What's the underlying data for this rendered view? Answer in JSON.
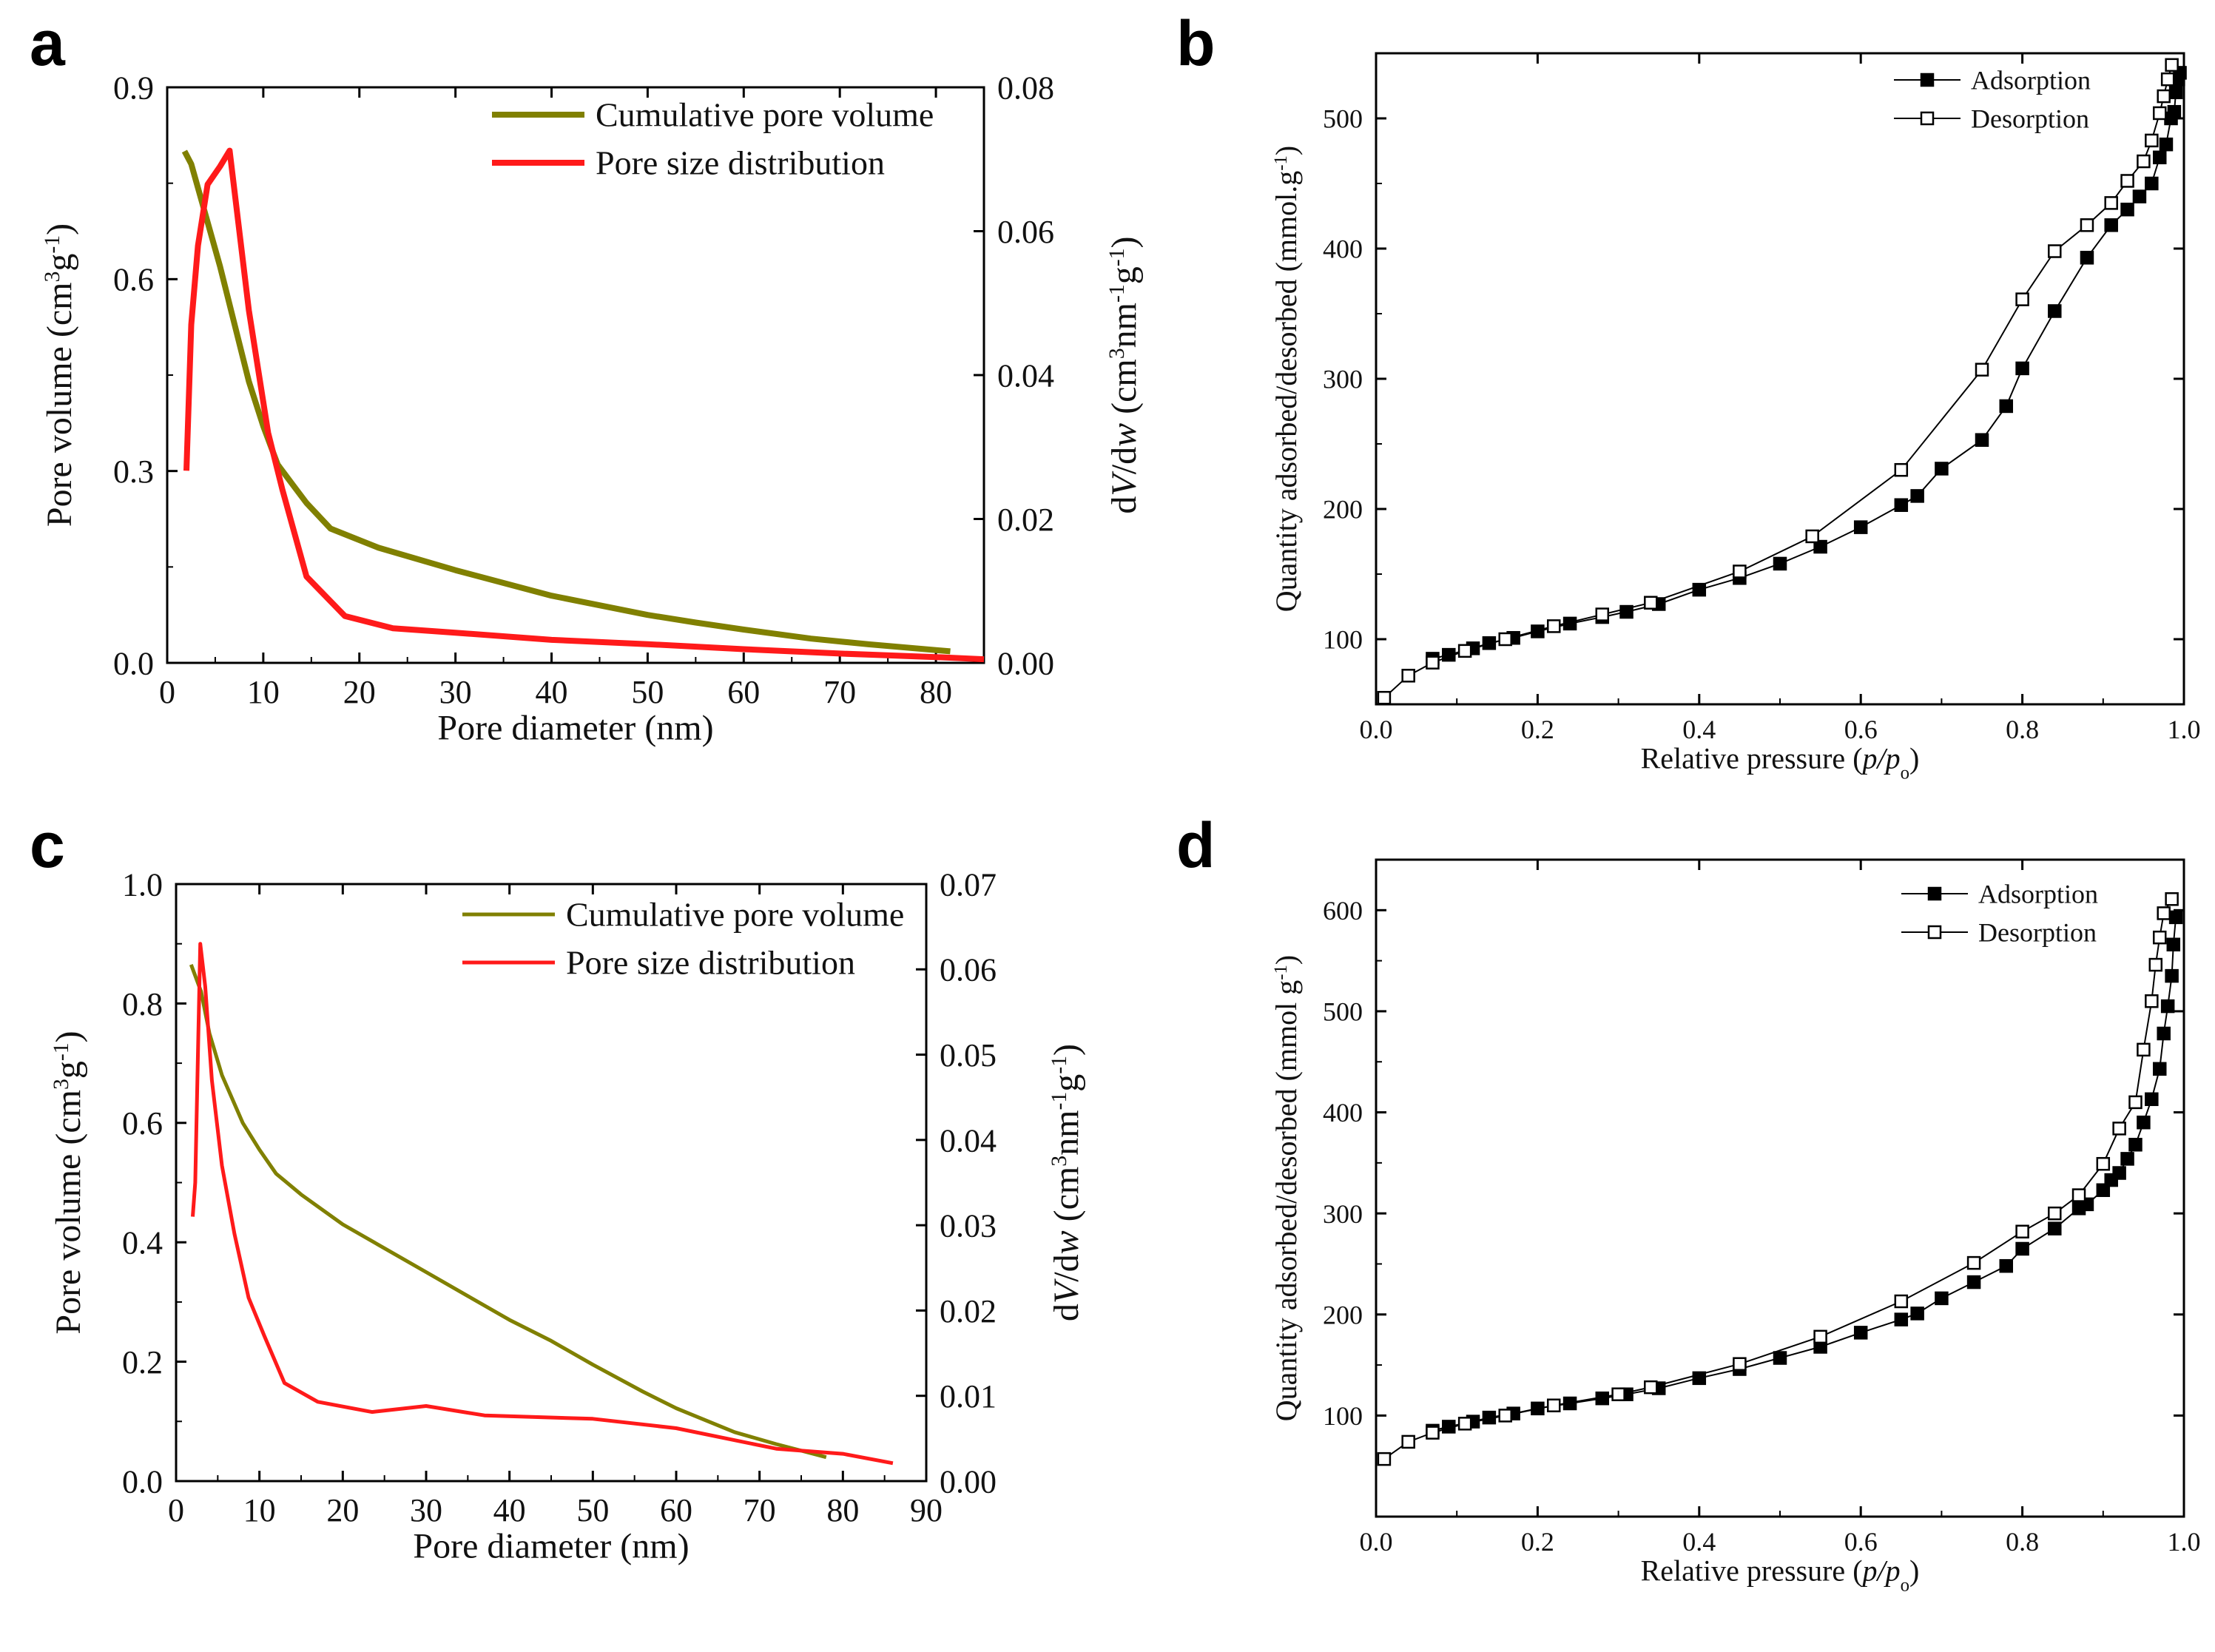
{
  "chart_data": [
    {
      "panel": "a",
      "type": "line",
      "xlabel": "Pore diameter (nm)",
      "ylabel": "Pore volume (cm3g-1)",
      "ylabel_parts": [
        "Pore volume ",
        "(cm",
        "3",
        "g",
        "-1",
        ")"
      ],
      "y2label": "dV/dw (cm3nm-1g-1)",
      "y2label_parts": [
        "d",
        "V",
        "/d",
        "w",
        " (cm",
        "3",
        "nm",
        "-1",
        "g",
        "-1",
        ")"
      ],
      "xlim": [
        0,
        85
      ],
      "ylim": [
        0,
        0.9
      ],
      "y2lim": [
        0,
        0.08
      ],
      "xticks": [
        "0",
        "10",
        "20",
        "30",
        "40",
        "50",
        "60",
        "70",
        "80"
      ],
      "yticks": [
        "0.0",
        "0.3",
        "0.6",
        "0.9"
      ],
      "y2ticks": [
        "0.00",
        "0.02",
        "0.04",
        "0.06",
        "0.08"
      ],
      "legend_position": "top-right",
      "series": [
        {
          "name": "Cumulative pore volume",
          "axis": "left",
          "color": "#808000",
          "points": [
            [
              1.8,
              0.8
            ],
            [
              2.5,
              0.78
            ],
            [
              4,
              0.7
            ],
            [
              5.5,
              0.62
            ],
            [
              7,
              0.53
            ],
            [
              8.5,
              0.44
            ],
            [
              10,
              0.37
            ],
            [
              11.5,
              0.31
            ],
            [
              13,
              0.28
            ],
            [
              14.5,
              0.25
            ],
            [
              17,
              0.21
            ],
            [
              22,
              0.18
            ],
            [
              30,
              0.145
            ],
            [
              40,
              0.105
            ],
            [
              50,
              0.075
            ],
            [
              55,
              0.063
            ],
            [
              60,
              0.052
            ],
            [
              67,
              0.038
            ],
            [
              73,
              0.029
            ],
            [
              81.5,
              0.018
            ]
          ]
        },
        {
          "name": "Pore size distribution",
          "axis": "right",
          "color": "#ff1a1a",
          "points": [
            [
              2,
              0.0267
            ],
            [
              2.5,
              0.047
            ],
            [
              3.2,
              0.058
            ],
            [
              4.2,
              0.0665
            ],
            [
              5.5,
              0.069
            ],
            [
              6.5,
              0.0712
            ],
            [
              8.5,
              0.049
            ],
            [
              10.5,
              0.032
            ],
            [
              12,
              0.024
            ],
            [
              14.5,
              0.012
            ],
            [
              18.5,
              0.0065
            ],
            [
              23.5,
              0.0048
            ],
            [
              30,
              0.0042
            ],
            [
              40,
              0.0032
            ],
            [
              50,
              0.0026
            ],
            [
              60,
              0.0019
            ],
            [
              70,
              0.0013
            ],
            [
              80,
              0.0008
            ],
            [
              85,
              0.0005
            ]
          ]
        }
      ]
    },
    {
      "panel": "b",
      "type": "scatter",
      "xlabel": "Relative pressure (p/po)",
      "xlabel_parts": [
        "Relative pressure (",
        "p",
        "/",
        "p",
        "o",
        ")"
      ],
      "ylabel": "Quantity adsorbed/desorbed (mmol.g-1)",
      "ylabel_parts": [
        "Quantity adsorbed/desorbed (mmol.g",
        "-1",
        ")"
      ],
      "xlim": [
        0,
        1.0
      ],
      "ylim": [
        50,
        550
      ],
      "xticks": [
        "0.0",
        "0.2",
        "0.4",
        "0.6",
        "0.8",
        "1.0"
      ],
      "yticks": [
        "100",
        "200",
        "300",
        "400",
        "500"
      ],
      "legend_position": "top-right",
      "series": [
        {
          "name": "Adsorption",
          "marker": "filled-square",
          "points": [
            [
              0.07,
              85
            ],
            [
              0.09,
              88
            ],
            [
              0.12,
              93
            ],
            [
              0.14,
              97
            ],
            [
              0.17,
              101
            ],
            [
              0.2,
              106
            ],
            [
              0.24,
              112
            ],
            [
              0.28,
              117
            ],
            [
              0.31,
              121
            ],
            [
              0.35,
              127
            ],
            [
              0.4,
              138
            ],
            [
              0.45,
              147
            ],
            [
              0.5,
              158
            ],
            [
              0.55,
              171
            ],
            [
              0.6,
              186
            ],
            [
              0.65,
              203
            ],
            [
              0.67,
              210
            ],
            [
              0.7,
              231
            ],
            [
              0.75,
              253
            ],
            [
              0.78,
              279
            ],
            [
              0.8,
              308
            ],
            [
              0.84,
              352
            ],
            [
              0.88,
              393
            ],
            [
              0.91,
              418
            ],
            [
              0.93,
              430
            ],
            [
              0.945,
              440
            ],
            [
              0.96,
              450
            ],
            [
              0.97,
              470
            ],
            [
              0.978,
              480
            ],
            [
              0.984,
              500
            ],
            [
              0.988,
              505
            ],
            [
              0.99,
              520
            ],
            [
              0.993,
              530
            ],
            [
              0.995,
              535
            ]
          ]
        },
        {
          "name": "Desorption",
          "marker": "open-square",
          "points": [
            [
              0.01,
              55
            ],
            [
              0.04,
              72
            ],
            [
              0.07,
              82
            ],
            [
              0.11,
              91
            ],
            [
              0.16,
              100
            ],
            [
              0.22,
              110
            ],
            [
              0.28,
              119
            ],
            [
              0.34,
              128
            ],
            [
              0.45,
              152
            ],
            [
              0.54,
              179
            ],
            [
              0.65,
              230
            ],
            [
              0.75,
              307
            ],
            [
              0.8,
              361
            ],
            [
              0.84,
              398
            ],
            [
              0.88,
              418
            ],
            [
              0.91,
              435
            ],
            [
              0.93,
              452
            ],
            [
              0.95,
              467
            ],
            [
              0.96,
              483
            ],
            [
              0.97,
              504
            ],
            [
              0.975,
              517
            ],
            [
              0.98,
              530
            ],
            [
              0.985,
              541
            ]
          ]
        }
      ]
    },
    {
      "panel": "c",
      "type": "line",
      "xlabel": "Pore diameter (nm)",
      "ylabel": "Pore volume (cm3g-1)",
      "ylabel_parts": [
        "Pore volume ",
        "(cm",
        "3",
        "g",
        "-1",
        ")"
      ],
      "y2label": "dV/dw (cm3nm-1g-1)",
      "y2label_parts": [
        "d",
        "V",
        "/d",
        "w",
        " (cm",
        "3",
        "nm",
        "-1",
        "g",
        "-1",
        ")"
      ],
      "xlim": [
        0,
        90
      ],
      "ylim": [
        0,
        1.0
      ],
      "y2lim": [
        0,
        0.07
      ],
      "xticks": [
        "0",
        "10",
        "20",
        "30",
        "40",
        "50",
        "60",
        "70",
        "80",
        "90"
      ],
      "yticks": [
        "0.0",
        "0.2",
        "0.4",
        "0.6",
        "0.8",
        "1.0"
      ],
      "y2ticks": [
        "0.00",
        "0.01",
        "0.02",
        "0.03",
        "0.04",
        "0.05",
        "0.06",
        "0.07"
      ],
      "legend_position": "top-right",
      "series": [
        {
          "name": "Cumulative pore volume",
          "axis": "left",
          "color": "#808000",
          "points": [
            [
              1.8,
              0.865
            ],
            [
              3,
              0.82
            ],
            [
              4,
              0.75
            ],
            [
              5.5,
              0.68
            ],
            [
              8,
              0.6
            ],
            [
              10,
              0.555
            ],
            [
              12,
              0.515
            ],
            [
              15,
              0.48
            ],
            [
              20,
              0.43
            ],
            [
              25,
              0.39
            ],
            [
              30,
              0.35
            ],
            [
              35,
              0.31
            ],
            [
              40,
              0.27
            ],
            [
              45,
              0.235
            ],
            [
              50,
              0.195
            ],
            [
              56,
              0.15
            ],
            [
              60,
              0.122
            ],
            [
              67,
              0.082
            ],
            [
              72,
              0.062
            ],
            [
              78,
              0.04
            ]
          ]
        },
        {
          "name": "Pore size distribution",
          "axis": "right",
          "color": "#ff1a1a",
          "points": [
            [
              2,
              0.031
            ],
            [
              2.3,
              0.035
            ],
            [
              2.9,
              0.063
            ],
            [
              3.5,
              0.058
            ],
            [
              4.3,
              0.047
            ],
            [
              5.5,
              0.037
            ],
            [
              7,
              0.029
            ],
            [
              8.7,
              0.0215
            ],
            [
              10.6,
              0.017
            ],
            [
              13,
              0.0115
            ],
            [
              17,
              0.0093
            ],
            [
              23.5,
              0.0081
            ],
            [
              30,
              0.0088
            ],
            [
              37,
              0.0077
            ],
            [
              50,
              0.0073
            ],
            [
              60,
              0.0062
            ],
            [
              67,
              0.0048
            ],
            [
              72,
              0.0038
            ],
            [
              80,
              0.0032
            ],
            [
              86,
              0.0021
            ]
          ]
        }
      ]
    },
    {
      "panel": "d",
      "type": "scatter",
      "xlabel": "Relative pressure (p/po)",
      "xlabel_parts": [
        "Relative pressure (",
        "p",
        "/",
        "p",
        "o",
        ")"
      ],
      "ylabel": "Quantity adsorbed/desorbed (mmol g-1)",
      "ylabel_parts": [
        "Quantity adsorbed/desorbed (mmol g",
        "-1",
        ")"
      ],
      "xlim": [
        0,
        1.0
      ],
      "ylim": [
        0,
        650
      ],
      "xticks": [
        "0.0",
        "0.2",
        "0.4",
        "0.6",
        "0.8",
        "1.0"
      ],
      "yticks": [
        "100",
        "200",
        "300",
        "400",
        "500",
        "600"
      ],
      "legend_position": "top-right",
      "series": [
        {
          "name": "Adsorption",
          "marker": "filled-square",
          "points": [
            [
              0.07,
              85
            ],
            [
              0.09,
              89
            ],
            [
              0.12,
              94
            ],
            [
              0.14,
              98
            ],
            [
              0.17,
              102
            ],
            [
              0.2,
              107
            ],
            [
              0.24,
              112
            ],
            [
              0.28,
              117
            ],
            [
              0.31,
              121
            ],
            [
              0.35,
              127
            ],
            [
              0.4,
              137
            ],
            [
              0.45,
              146
            ],
            [
              0.5,
              157
            ],
            [
              0.55,
              168
            ],
            [
              0.6,
              182
            ],
            [
              0.65,
              195
            ],
            [
              0.67,
              201
            ],
            [
              0.7,
              216
            ],
            [
              0.74,
              232
            ],
            [
              0.78,
              248
            ],
            [
              0.8,
              265
            ],
            [
              0.84,
              285
            ],
            [
              0.87,
              305
            ],
            [
              0.88,
              309
            ],
            [
              0.9,
              323
            ],
            [
              0.91,
              333
            ],
            [
              0.92,
              340
            ],
            [
              0.93,
              354
            ],
            [
              0.94,
              368
            ],
            [
              0.95,
              390
            ],
            [
              0.96,
              413
            ],
            [
              0.97,
              443
            ],
            [
              0.975,
              478
            ],
            [
              0.98,
              505
            ],
            [
              0.985,
              535
            ],
            [
              0.987,
              566
            ],
            [
              0.99,
              593
            ]
          ]
        },
        {
          "name": "Desorption",
          "marker": "open-square",
          "points": [
            [
              0.01,
              57
            ],
            [
              0.04,
              74
            ],
            [
              0.07,
              83
            ],
            [
              0.11,
              92
            ],
            [
              0.16,
              100
            ],
            [
              0.22,
              110
            ],
            [
              0.3,
              121
            ],
            [
              0.34,
              128
            ],
            [
              0.45,
              151
            ],
            [
              0.55,
              178
            ],
            [
              0.65,
              213
            ],
            [
              0.74,
              251
            ],
            [
              0.8,
              282
            ],
            [
              0.84,
              300
            ],
            [
              0.87,
              318
            ],
            [
              0.9,
              349
            ],
            [
              0.92,
              384
            ],
            [
              0.94,
              410
            ],
            [
              0.95,
              462
            ],
            [
              0.96,
              510
            ],
            [
              0.965,
              546
            ],
            [
              0.97,
              573
            ],
            [
              0.975,
              597
            ],
            [
              0.985,
              611
            ]
          ]
        }
      ]
    }
  ]
}
